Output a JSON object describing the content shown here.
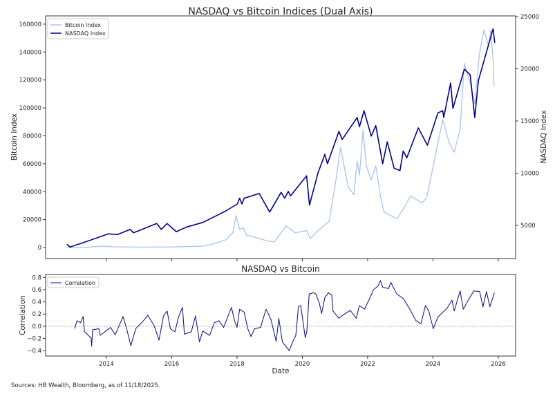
{
  "chart_data": [
    {
      "type": "line",
      "title": "NASDAQ vs Bitcoin Indices (Dual Axis)",
      "xlabel": "",
      "ylabel": "Bitcoin Index",
      "ylabel_right": "NASDAQ Index",
      "xlim": [
        2012.14,
        2026.53
      ],
      "ylim": [
        -7900,
        165900
      ],
      "ylim_right": [
        1820,
        25070
      ],
      "x_ticks": [
        2014,
        2016,
        2018,
        2020,
        2022,
        2024,
        2026
      ],
      "y_ticks": [
        0,
        20000,
        40000,
        60000,
        80000,
        100000,
        120000,
        140000,
        160000
      ],
      "y_tick_labels": [
        "0",
        "20000",
        "40000",
        "60000",
        "80000",
        "100000",
        "120000",
        "140000",
        "160000"
      ],
      "y_ticks_right": [
        5000,
        10000,
        15000,
        20000,
        25000
      ],
      "y_tick_labels_right": [
        "5000",
        "10000",
        "15000",
        "20000",
        "25000"
      ],
      "grid": false,
      "legend_position": "top-left",
      "series": [
        {
          "name": "Bitcoin Index",
          "axis": "left",
          "color": "#a9c3ec",
          "points": [
            [
              2012.79,
              0
            ],
            [
              2013.3,
              100
            ],
            [
              2013.92,
              1000
            ],
            [
              2014.2,
              500
            ],
            [
              2015.0,
              300
            ],
            [
              2016.0,
              400
            ],
            [
              2016.95,
              1000
            ],
            [
              2017.23,
              2300
            ],
            [
              2017.66,
              5600
            ],
            [
              2017.87,
              10500
            ],
            [
              2017.97,
              22900
            ],
            [
              2018.08,
              13000
            ],
            [
              2018.19,
              14200
            ],
            [
              2018.29,
              8900
            ],
            [
              2018.61,
              7000
            ],
            [
              2018.92,
              4800
            ],
            [
              2019.14,
              4000
            ],
            [
              2019.5,
              15500
            ],
            [
              2019.78,
              10500
            ],
            [
              2020.13,
              12200
            ],
            [
              2020.24,
              6400
            ],
            [
              2020.48,
              12200
            ],
            [
              2020.82,
              18800
            ],
            [
              2021.03,
              48500
            ],
            [
              2021.17,
              71700
            ],
            [
              2021.4,
              43600
            ],
            [
              2021.58,
              37800
            ],
            [
              2021.68,
              61800
            ],
            [
              2021.75,
              51900
            ],
            [
              2021.86,
              84000
            ],
            [
              2021.96,
              58400
            ],
            [
              2022.11,
              48500
            ],
            [
              2022.25,
              58400
            ],
            [
              2022.39,
              37000
            ],
            [
              2022.5,
              25400
            ],
            [
              2022.89,
              20500
            ],
            [
              2023.17,
              30400
            ],
            [
              2023.31,
              37000
            ],
            [
              2023.66,
              32000
            ],
            [
              2023.8,
              35300
            ],
            [
              2023.98,
              55100
            ],
            [
              2024.15,
              74900
            ],
            [
              2024.3,
              91500
            ],
            [
              2024.5,
              74900
            ],
            [
              2024.65,
              68300
            ],
            [
              2024.83,
              84800
            ],
            [
              2024.96,
              131900
            ],
            [
              2025.14,
              117900
            ],
            [
              2025.28,
              103000
            ],
            [
              2025.42,
              137700
            ],
            [
              2025.56,
              155900
            ],
            [
              2025.7,
              144300
            ],
            [
              2025.77,
              155900
            ],
            [
              2025.84,
              134400
            ],
            [
              2025.87,
              115400
            ]
          ]
        },
        {
          "name": "NASDAQ Index",
          "axis": "right",
          "color": "#00008b",
          "points": [
            [
              2012.79,
              3190
            ],
            [
              2012.89,
              2930
            ],
            [
              2013.35,
              3410
            ],
            [
              2014.06,
              4190
            ],
            [
              2014.34,
              4120
            ],
            [
              2014.73,
              4620
            ],
            [
              2014.83,
              4290
            ],
            [
              2015.54,
              5180
            ],
            [
              2015.68,
              4620
            ],
            [
              2015.86,
              5180
            ],
            [
              2016.14,
              4400
            ],
            [
              2016.46,
              4850
            ],
            [
              2016.95,
              5280
            ],
            [
              2017.38,
              5950
            ],
            [
              2017.66,
              6390
            ],
            [
              2018.01,
              7050
            ],
            [
              2018.08,
              7600
            ],
            [
              2018.15,
              7050
            ],
            [
              2018.22,
              7600
            ],
            [
              2018.68,
              8050
            ],
            [
              2019.0,
              6280
            ],
            [
              2019.35,
              8160
            ],
            [
              2019.46,
              7600
            ],
            [
              2019.57,
              8260
            ],
            [
              2019.64,
              7830
            ],
            [
              2020.13,
              9750
            ],
            [
              2020.22,
              6940
            ],
            [
              2020.48,
              10030
            ],
            [
              2020.69,
              11800
            ],
            [
              2020.77,
              10910
            ],
            [
              2021.12,
              14010
            ],
            [
              2021.22,
              13230
            ],
            [
              2021.68,
              15330
            ],
            [
              2021.75,
              14450
            ],
            [
              2021.89,
              15990
            ],
            [
              2022.11,
              13560
            ],
            [
              2022.25,
              14560
            ],
            [
              2022.46,
              10910
            ],
            [
              2022.6,
              13010
            ],
            [
              2022.81,
              10480
            ],
            [
              2022.99,
              10250
            ],
            [
              2023.09,
              12130
            ],
            [
              2023.2,
              11470
            ],
            [
              2023.55,
              14340
            ],
            [
              2023.83,
              12680
            ],
            [
              2024.15,
              15770
            ],
            [
              2024.3,
              15990
            ],
            [
              2024.33,
              15330
            ],
            [
              2024.54,
              18640
            ],
            [
              2024.61,
              16210
            ],
            [
              2024.96,
              19970
            ],
            [
              2025.14,
              19420
            ],
            [
              2025.28,
              15330
            ],
            [
              2025.39,
              18860
            ],
            [
              2025.64,
              21620
            ],
            [
              2025.84,
              23830
            ],
            [
              2025.89,
              22500
            ]
          ]
        }
      ]
    },
    {
      "type": "line",
      "title": "NASDAQ vs Bitcoin",
      "xlabel": "Date",
      "ylabel": "Correlation",
      "xlim": [
        2012.14,
        2026.53
      ],
      "ylim": [
        -0.49,
        0.85
      ],
      "x_ticks": [
        2014,
        2016,
        2018,
        2020,
        2022,
        2024,
        2026
      ],
      "x_tick_labels": [
        "2014",
        "2016",
        "2018",
        "2020",
        "2022",
        "2024",
        "2026"
      ],
      "y_ticks": [
        -0.4,
        -0.2,
        0.0,
        0.2,
        0.4,
        0.6,
        0.8
      ],
      "y_tick_labels": [
        "−0.4",
        "−0.2",
        "0.0",
        "0.2",
        "0.4",
        "0.6",
        "0.8"
      ],
      "reference_line": 0.0,
      "grid": false,
      "legend_position": "top-left",
      "series": [
        {
          "name": "Correlation",
          "color": "#1a1a8c",
          "points": [
            [
              2013.03,
              -0.04
            ],
            [
              2013.1,
              0.09
            ],
            [
              2013.21,
              0.06
            ],
            [
              2013.29,
              0.16
            ],
            [
              2013.33,
              -0.09
            ],
            [
              2013.53,
              -0.19
            ],
            [
              2013.55,
              -0.33
            ],
            [
              2013.58,
              -0.06
            ],
            [
              2013.77,
              -0.04
            ],
            [
              2013.81,
              -0.15
            ],
            [
              2014.13,
              -0.02
            ],
            [
              2014.27,
              -0.14
            ],
            [
              2014.51,
              0.16
            ],
            [
              2014.62,
              -0.04
            ],
            [
              2014.75,
              -0.32
            ],
            [
              2014.9,
              -0.04
            ],
            [
              2015.12,
              0.08
            ],
            [
              2015.27,
              0.18
            ],
            [
              2015.47,
              0.0
            ],
            [
              2015.61,
              -0.23
            ],
            [
              2015.75,
              0.17
            ],
            [
              2015.86,
              0.25
            ],
            [
              2015.96,
              -0.04
            ],
            [
              2016.1,
              -0.09
            ],
            [
              2016.21,
              0.15
            ],
            [
              2016.33,
              0.31
            ],
            [
              2016.39,
              -0.13
            ],
            [
              2016.6,
              -0.09
            ],
            [
              2016.73,
              0.17
            ],
            [
              2016.85,
              -0.26
            ],
            [
              2016.95,
              -0.08
            ],
            [
              2017.16,
              -0.15
            ],
            [
              2017.31,
              0.06
            ],
            [
              2017.45,
              0.09
            ],
            [
              2017.59,
              -0.02
            ],
            [
              2017.83,
              0.31
            ],
            [
              2017.93,
              0.08
            ],
            [
              2018.0,
              -0.02
            ],
            [
              2018.08,
              0.28
            ],
            [
              2018.22,
              0.23
            ],
            [
              2018.33,
              -0.04
            ],
            [
              2018.43,
              -0.17
            ],
            [
              2018.54,
              -0.04
            ],
            [
              2018.72,
              -0.02
            ],
            [
              2018.89,
              0.28
            ],
            [
              2019.04,
              0.11
            ],
            [
              2019.2,
              -0.25
            ],
            [
              2019.28,
              0.13
            ],
            [
              2019.39,
              -0.26
            ],
            [
              2019.6,
              -0.4
            ],
            [
              2019.71,
              -0.25
            ],
            [
              2019.8,
              -0.15
            ],
            [
              2019.88,
              0.32
            ],
            [
              2019.95,
              0.34
            ],
            [
              2020.09,
              -0.19
            ],
            [
              2020.14,
              -0.08
            ],
            [
              2020.21,
              0.53
            ],
            [
              2020.34,
              0.55
            ],
            [
              2020.41,
              0.53
            ],
            [
              2020.52,
              0.38
            ],
            [
              2020.59,
              0.21
            ],
            [
              2020.69,
              0.47
            ],
            [
              2020.8,
              0.55
            ],
            [
              2020.9,
              0.51
            ],
            [
              2020.94,
              0.25
            ],
            [
              2021.12,
              0.13
            ],
            [
              2021.26,
              0.19
            ],
            [
              2021.47,
              0.26
            ],
            [
              2021.65,
              0.13
            ],
            [
              2021.75,
              0.34
            ],
            [
              2021.9,
              0.28
            ],
            [
              2022.04,
              0.43
            ],
            [
              2022.18,
              0.6
            ],
            [
              2022.32,
              0.66
            ],
            [
              2022.39,
              0.75
            ],
            [
              2022.46,
              0.64
            ],
            [
              2022.64,
              0.62
            ],
            [
              2022.71,
              0.72
            ],
            [
              2022.89,
              0.53
            ],
            [
              2023.1,
              0.45
            ],
            [
              2023.27,
              0.3
            ],
            [
              2023.48,
              0.09
            ],
            [
              2023.63,
              0.04
            ],
            [
              2023.77,
              0.34
            ],
            [
              2023.87,
              0.25
            ],
            [
              2024.01,
              -0.04
            ],
            [
              2024.15,
              0.15
            ],
            [
              2024.44,
              0.3
            ],
            [
              2024.58,
              0.43
            ],
            [
              2024.65,
              0.25
            ],
            [
              2024.83,
              0.58
            ],
            [
              2024.93,
              0.28
            ],
            [
              2025.07,
              0.42
            ],
            [
              2025.25,
              0.58
            ],
            [
              2025.43,
              0.57
            ],
            [
              2025.53,
              0.32
            ],
            [
              2025.64,
              0.57
            ],
            [
              2025.74,
              0.32
            ],
            [
              2025.88,
              0.55
            ]
          ]
        }
      ]
    }
  ],
  "footer": {
    "source": "Sources: HB Wealth, Bloomberg, as of 11/18/2025."
  }
}
